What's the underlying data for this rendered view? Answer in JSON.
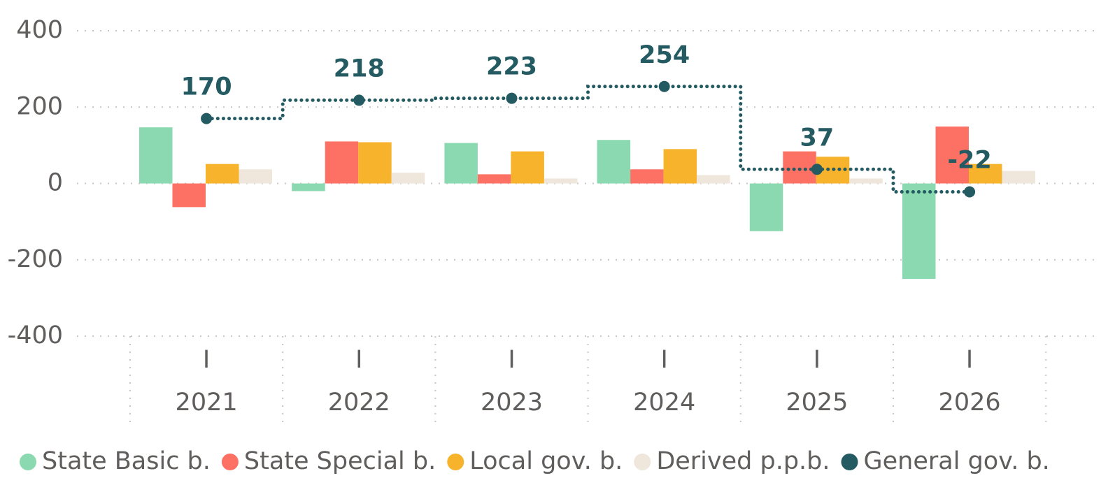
{
  "chart_data": {
    "type": "bar",
    "categories": [
      "2021",
      "2022",
      "2023",
      "2024",
      "2025",
      "2026"
    ],
    "subcategories": [
      "I",
      "I",
      "I",
      "I",
      "I",
      "I"
    ],
    "series": [
      {
        "name": "State Basic b.",
        "color": "#8ad9b0",
        "values": [
          147,
          -20,
          106,
          114,
          -125,
          -250
        ]
      },
      {
        "name": "State Special b.",
        "color": "#fd7064",
        "values": [
          -62,
          110,
          24,
          37,
          84,
          149
        ]
      },
      {
        "name": "Local gov. b.",
        "color": "#f6b32b",
        "values": [
          51,
          108,
          84,
          90,
          70,
          51
        ]
      },
      {
        "name": "Derived p.p.b.",
        "color": "#efe6dc",
        "values": [
          37,
          28,
          13,
          22,
          13,
          33
        ]
      },
      {
        "name": "General gov. b.",
        "color": "#245b62",
        "type": "line",
        "values": [
          170,
          218,
          223,
          254,
          37,
          -22
        ]
      }
    ],
    "ylim": [
      -400,
      400
    ],
    "yticks": [
      -400,
      -200,
      0,
      200,
      400
    ],
    "grid": true,
    "legend": "bottom"
  }
}
